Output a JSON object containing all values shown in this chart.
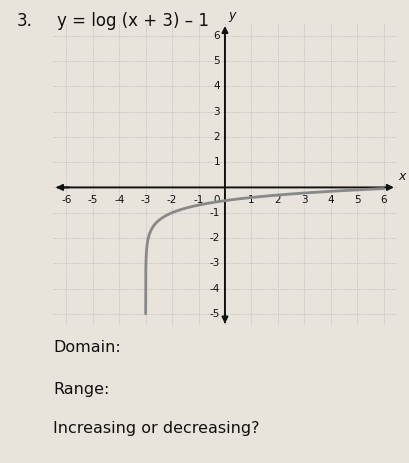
{
  "title_num": "3.",
  "title_eq": "y = log (x + 3) – 1",
  "title_fontsize": 12,
  "background_color": "#e8e4dc",
  "graph_bg_color": "#dedad2",
  "grid_color": "#a0a8b0",
  "axis_color": "#111111",
  "curve_color": "#888888",
  "xmin": -6,
  "xmax": 6,
  "ymin": -5,
  "ymax": 6,
  "x_ticks": [
    -6,
    -5,
    -4,
    -3,
    -2,
    -1,
    1,
    2,
    3,
    4,
    5,
    6
  ],
  "y_ticks": [
    -5,
    -4,
    -3,
    -2,
    -1,
    1,
    2,
    3,
    4,
    5,
    6
  ],
  "domain_label": "Domain:",
  "range_label": "Range:",
  "question_label": "Increasing or decreasing?",
  "tick_fontsize": 7.5,
  "label_fontsize": 9,
  "text_fontsize": 11.5
}
